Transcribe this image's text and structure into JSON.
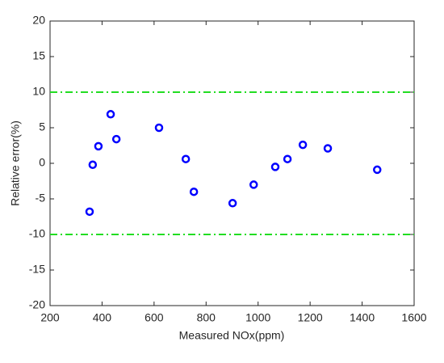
{
  "chart_data": {
    "type": "scatter",
    "xlabel": "Measured NOx(ppm)",
    "ylabel": "Relative error(%)",
    "series": [
      {
        "color": "#0000ff",
        "x": [
          352,
          364,
          386,
          433,
          455,
          619,
          722,
          753,
          902,
          983,
          1066,
          1113,
          1172,
          1268,
          1458
        ],
        "values": [
          -6.8,
          -0.2,
          2.4,
          6.9,
          3.4,
          5.0,
          0.6,
          -4.0,
          -5.6,
          -3.0,
          -0.5,
          0.6,
          2.6,
          2.1,
          -0.9
        ]
      }
    ],
    "reference_lines": [
      {
        "value": 10,
        "color": "#22dd22"
      },
      {
        "value": -10,
        "color": "#22dd22"
      }
    ],
    "xlim": [
      200,
      1600
    ],
    "xticks": [
      200,
      400,
      600,
      800,
      1000,
      1200,
      1400,
      1600
    ],
    "ylim": [
      -20,
      20
    ],
    "yticks": [
      -20,
      -15,
      -10,
      -5,
      0,
      5,
      10,
      15,
      20
    ]
  }
}
